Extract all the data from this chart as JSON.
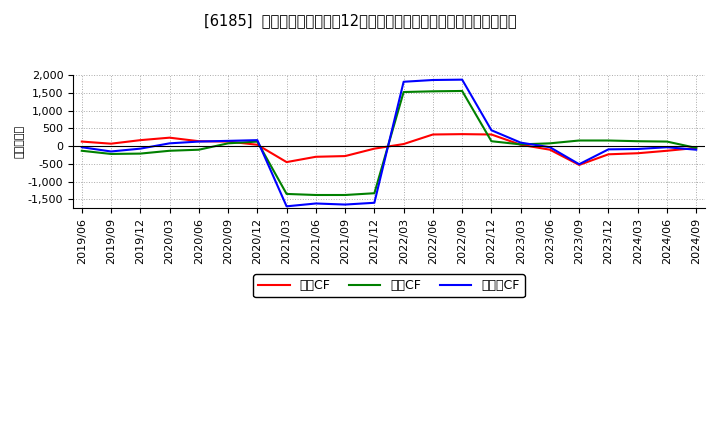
{
  "title": "[6185]  キャッシュフローの12か月移動合計の対前年同期増減額の推移",
  "ylabel": "（百万円）",
  "background_color": "#ffffff",
  "plot_bg_color": "#ffffff",
  "grid_color": "#aaaaaa",
  "ylim": [
    -1750,
    2000
  ],
  "yticks": [
    -1500,
    -1000,
    -500,
    0,
    500,
    1000,
    1500,
    2000
  ],
  "x_labels": [
    "2019/06",
    "2019/09",
    "2019/12",
    "2020/03",
    "2020/06",
    "2020/09",
    "2020/12",
    "2021/03",
    "2021/06",
    "2021/09",
    "2021/12",
    "2022/03",
    "2022/06",
    "2022/09",
    "2022/12",
    "2023/03",
    "2023/06",
    "2023/09",
    "2023/12",
    "2024/03",
    "2024/06",
    "2024/09"
  ],
  "series": {
    "営業CF": {
      "color": "#ff0000",
      "values": [
        130,
        70,
        170,
        240,
        140,
        130,
        40,
        -450,
        -300,
        -280,
        -70,
        60,
        330,
        340,
        330,
        40,
        -100,
        -530,
        -230,
        -200,
        -130,
        -50
      ]
    },
    "投資CF": {
      "color": "#008000",
      "values": [
        -130,
        -220,
        -210,
        -130,
        -100,
        80,
        130,
        -1350,
        -1380,
        -1380,
        -1330,
        1530,
        1550,
        1560,
        140,
        50,
        80,
        160,
        160,
        140,
        130,
        -50
      ]
    },
    "フリーCF": {
      "color": "#0000ff",
      "values": [
        -30,
        -150,
        -70,
        80,
        130,
        150,
        170,
        -1700,
        -1620,
        -1650,
        -1600,
        1820,
        1870,
        1880,
        450,
        100,
        -30,
        -510,
        -90,
        -80,
        -30,
        -100
      ]
    }
  },
  "legend_labels": [
    "営業CF",
    "投資CF",
    "フリーCF"
  ],
  "title_fontsize": 10.5,
  "ylabel_fontsize": 8,
  "tick_fontsize": 8,
  "legend_fontsize": 9
}
